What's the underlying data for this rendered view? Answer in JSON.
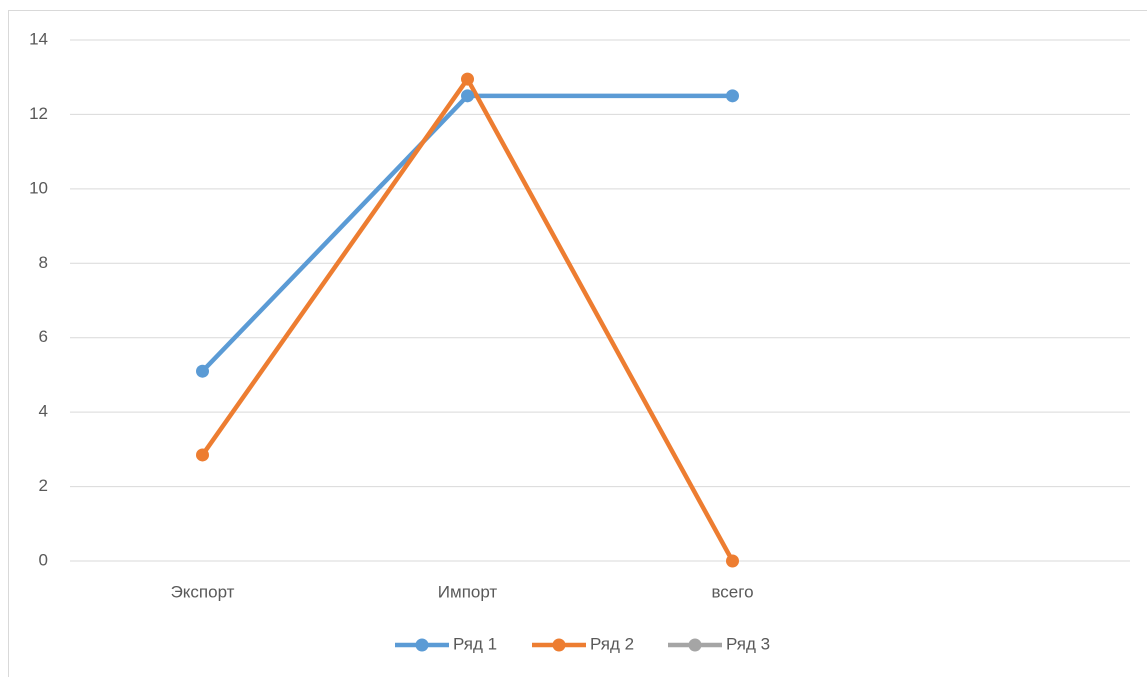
{
  "chart_data": {
    "type": "line",
    "categories": [
      "Экспорт",
      "Импорт",
      "всего",
      null
    ],
    "series": [
      {
        "name": "Ряд 1",
        "color": "#5b9bd5",
        "values": [
          5.1,
          12.5,
          12.5,
          null
        ]
      },
      {
        "name": "Ряд 2",
        "color": "#ed7d31",
        "values": [
          2.85,
          12.95,
          0,
          null
        ]
      },
      {
        "name": "Ряд 3",
        "color": "#a5a5a5",
        "values": [
          null,
          null,
          null,
          null
        ]
      }
    ],
    "ylim": [
      0,
      14
    ],
    "yticks": [
      0,
      2,
      4,
      6,
      8,
      10,
      12,
      14
    ],
    "grid": true,
    "legend": "bottom"
  }
}
